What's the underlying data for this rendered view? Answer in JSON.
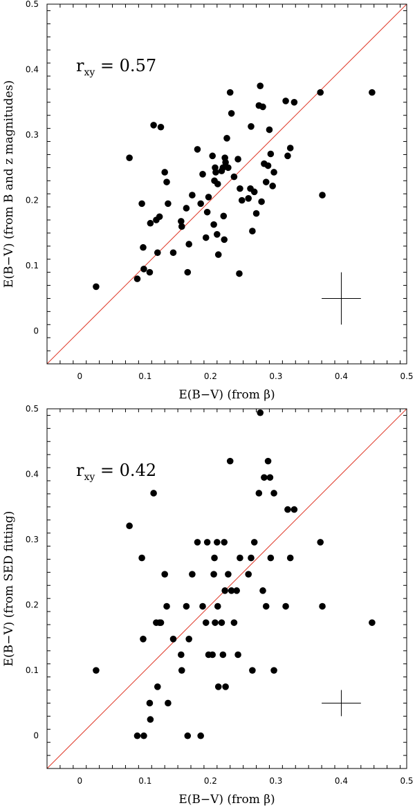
{
  "chart_data": [
    {
      "type": "scatter",
      "xlabel": "E(B−V) (from β)",
      "ylabel": "E(B−V) (from B and z magnitudes)",
      "annotation": {
        "symbol": "r",
        "subscript": "xy",
        "text": " = 0.57"
      },
      "xlim": [
        -0.05,
        0.5
      ],
      "ylim": [
        -0.05,
        0.5
      ],
      "xticks": [
        0,
        0.1,
        0.2,
        0.3,
        0.4,
        0.5
      ],
      "yticks": [
        0,
        0.1,
        0.2,
        0.3,
        0.4,
        0.5
      ],
      "line_color": "#e03a2a",
      "reference_line": "y = x",
      "error_bar": {
        "x": 0.4,
        "y": 0.05,
        "xerr": 0.03,
        "yerr": 0.04
      },
      "points": [
        [
          0.025,
          0.068
        ],
        [
          0.076,
          0.265
        ],
        [
          0.088,
          0.08
        ],
        [
          0.095,
          0.195
        ],
        [
          0.097,
          0.128
        ],
        [
          0.098,
          0.095
        ],
        [
          0.107,
          0.09
        ],
        [
          0.108,
          0.165
        ],
        [
          0.113,
          0.315
        ],
        [
          0.117,
          0.17
        ],
        [
          0.119,
          0.12
        ],
        [
          0.122,
          0.175
        ],
        [
          0.124,
          0.312
        ],
        [
          0.13,
          0.243
        ],
        [
          0.133,
          0.228
        ],
        [
          0.135,
          0.195
        ],
        [
          0.143,
          0.12
        ],
        [
          0.155,
          0.168
        ],
        [
          0.156,
          0.16
        ],
        [
          0.163,
          0.188
        ],
        [
          0.165,
          0.09
        ],
        [
          0.167,
          0.133
        ],
        [
          0.172,
          0.208
        ],
        [
          0.18,
          0.278
        ],
        [
          0.185,
          0.195
        ],
        [
          0.188,
          0.24
        ],
        [
          0.193,
          0.143
        ],
        [
          0.195,
          0.182
        ],
        [
          0.197,
          0.205
        ],
        [
          0.203,
          0.268
        ],
        [
          0.205,
          0.163
        ],
        [
          0.206,
          0.23
        ],
        [
          0.207,
          0.25
        ],
        [
          0.208,
          0.243
        ],
        [
          0.21,
          0.148
        ],
        [
          0.211,
          0.225
        ],
        [
          0.212,
          0.117
        ],
        [
          0.217,
          0.245
        ],
        [
          0.219,
          0.25
        ],
        [
          0.22,
          0.176
        ],
        [
          0.221,
          0.14
        ],
        [
          0.222,
          0.265
        ],
        [
          0.223,
          0.258
        ],
        [
          0.225,
          0.295
        ],
        [
          0.227,
          0.25
        ],
        [
          0.23,
          0.365
        ],
        [
          0.232,
          0.333
        ],
        [
          0.236,
          0.236
        ],
        [
          0.242,
          0.263
        ],
        [
          0.244,
          0.088
        ],
        [
          0.245,
          0.218
        ],
        [
          0.248,
          0.2
        ],
        [
          0.258,
          0.203
        ],
        [
          0.261,
          0.218
        ],
        [
          0.262,
          0.313
        ],
        [
          0.264,
          0.153
        ],
        [
          0.267,
          0.213
        ],
        [
          0.27,
          0.18
        ],
        [
          0.274,
          0.345
        ],
        [
          0.276,
          0.375
        ],
        [
          0.278,
          0.198
        ],
        [
          0.28,
          0.343
        ],
        [
          0.282,
          0.256
        ],
        [
          0.285,
          0.228
        ],
        [
          0.288,
          0.253
        ],
        [
          0.29,
          0.308
        ],
        [
          0.292,
          0.271
        ],
        [
          0.295,
          0.222
        ],
        [
          0.297,
          0.243
        ],
        [
          0.315,
          0.352
        ],
        [
          0.318,
          0.268
        ],
        [
          0.322,
          0.28
        ],
        [
          0.328,
          0.35
        ],
        [
          0.368,
          0.365
        ],
        [
          0.371,
          0.208
        ],
        [
          0.447,
          0.365
        ]
      ]
    },
    {
      "type": "scatter",
      "xlabel": "E(B−V) (from β)",
      "ylabel": "E(B−V) (from SED fitting)",
      "annotation": {
        "symbol": "r",
        "subscript": "xy",
        "text": " = 0.42"
      },
      "xlim": [
        -0.05,
        0.5
      ],
      "ylim": [
        -0.05,
        0.5
      ],
      "xticks": [
        0,
        0.1,
        0.2,
        0.3,
        0.4,
        0.5
      ],
      "yticks": [
        0,
        0.1,
        0.2,
        0.3,
        0.4,
        0.5
      ],
      "line_color": "#e03a2a",
      "reference_line": "y = x",
      "error_bar": {
        "x": 0.4,
        "y": 0.05,
        "xerr": 0.03,
        "yerr": 0.02
      },
      "points": [
        [
          0.025,
          0.1
        ],
        [
          0.076,
          0.321
        ],
        [
          0.088,
          0.0
        ],
        [
          0.095,
          0.272
        ],
        [
          0.097,
          0.148
        ],
        [
          0.098,
          0.0
        ],
        [
          0.107,
          0.05
        ],
        [
          0.108,
          0.025
        ],
        [
          0.113,
          0.371
        ],
        [
          0.117,
          0.173
        ],
        [
          0.119,
          0.075
        ],
        [
          0.122,
          0.173
        ],
        [
          0.124,
          0.173
        ],
        [
          0.13,
          0.247
        ],
        [
          0.133,
          0.198
        ],
        [
          0.135,
          0.05
        ],
        [
          0.143,
          0.148
        ],
        [
          0.155,
          0.124
        ],
        [
          0.156,
          0.1
        ],
        [
          0.163,
          0.198
        ],
        [
          0.165,
          0.0
        ],
        [
          0.167,
          0.148
        ],
        [
          0.172,
          0.247
        ],
        [
          0.18,
          0.296
        ],
        [
          0.185,
          0.0
        ],
        [
          0.188,
          0.198
        ],
        [
          0.193,
          0.173
        ],
        [
          0.195,
          0.296
        ],
        [
          0.197,
          0.124
        ],
        [
          0.203,
          0.124
        ],
        [
          0.205,
          0.247
        ],
        [
          0.206,
          0.272
        ],
        [
          0.207,
          0.173
        ],
        [
          0.21,
          0.296
        ],
        [
          0.211,
          0.198
        ],
        [
          0.212,
          0.075
        ],
        [
          0.217,
          0.173
        ],
        [
          0.219,
          0.124
        ],
        [
          0.221,
          0.296
        ],
        [
          0.222,
          0.222
        ],
        [
          0.223,
          0.075
        ],
        [
          0.227,
          0.247
        ],
        [
          0.23,
          0.42
        ],
        [
          0.232,
          0.222
        ],
        [
          0.236,
          0.173
        ],
        [
          0.24,
          0.222
        ],
        [
          0.242,
          0.124
        ],
        [
          0.245,
          0.272
        ],
        [
          0.258,
          0.247
        ],
        [
          0.262,
          0.272
        ],
        [
          0.264,
          0.1
        ],
        [
          0.267,
          0.296
        ],
        [
          0.274,
          0.371
        ],
        [
          0.276,
          0.494
        ],
        [
          0.28,
          0.222
        ],
        [
          0.282,
          0.395
        ],
        [
          0.285,
          0.198
        ],
        [
          0.288,
          0.42
        ],
        [
          0.291,
          0.395
        ],
        [
          0.292,
          0.272
        ],
        [
          0.297,
          0.371
        ],
        [
          0.297,
          0.1
        ],
        [
          0.315,
          0.198
        ],
        [
          0.318,
          0.346
        ],
        [
          0.322,
          0.272
        ],
        [
          0.328,
          0.346
        ],
        [
          0.368,
          0.296
        ],
        [
          0.371,
          0.198
        ],
        [
          0.447,
          0.173
        ]
      ]
    }
  ]
}
